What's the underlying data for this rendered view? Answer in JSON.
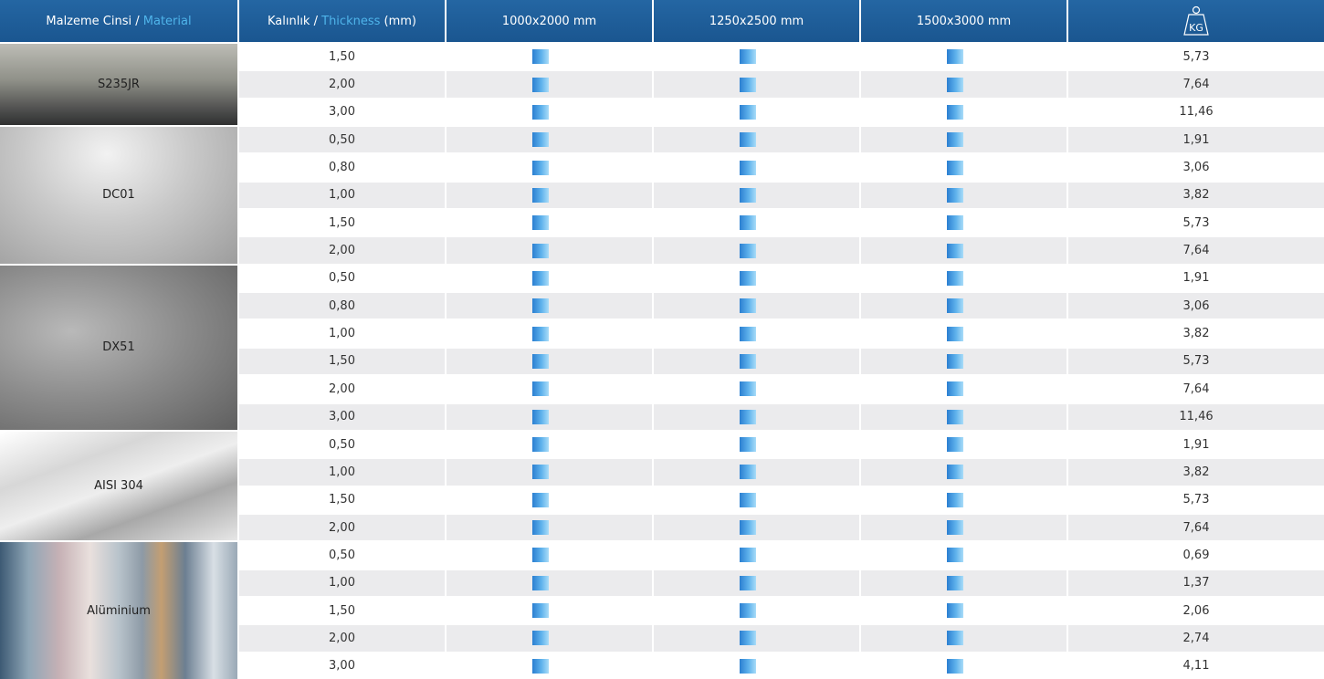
{
  "header": {
    "material": {
      "label": "Malzeme Cinsi /",
      "accent": "Material"
    },
    "thickness": {
      "label": "Kalınlık /",
      "accent": "Thickness",
      "unit": "(mm)"
    },
    "sizes": [
      "1000x2000 mm",
      "1250x2500 mm",
      "1500x3000 mm"
    ],
    "weight": "KG"
  },
  "materials": [
    {
      "name": "S235JR",
      "rows": [
        [
          "1,50",
          "5,73"
        ],
        [
          "2,00",
          "7,64"
        ],
        [
          "3,00",
          "11,46"
        ]
      ]
    },
    {
      "name": "DC01",
      "rows": [
        [
          "0,50",
          "1,91"
        ],
        [
          "0,80",
          "3,06"
        ],
        [
          "1,00",
          "3,82"
        ],
        [
          "1,50",
          "5,73"
        ],
        [
          "2,00",
          "7,64"
        ]
      ]
    },
    {
      "name": "DX51",
      "rows": [
        [
          "0,50",
          "1,91"
        ],
        [
          "0,80",
          "3,06"
        ],
        [
          "1,00",
          "3,82"
        ],
        [
          "1,50",
          "5,73"
        ],
        [
          "2,00",
          "7,64"
        ],
        [
          "3,00",
          "11,46"
        ]
      ]
    },
    {
      "name": "AISI 304",
      "rows": [
        [
          "0,50",
          "1,91"
        ],
        [
          "1,00",
          "3,82"
        ],
        [
          "1,50",
          "5,73"
        ],
        [
          "2,00",
          "7,64"
        ]
      ]
    },
    {
      "name": "Alüminium",
      "rows": [
        [
          "0,50",
          "0,69"
        ],
        [
          "1,00",
          "1,37"
        ],
        [
          "1,50",
          "2,06"
        ],
        [
          "2,00",
          "2,74"
        ],
        [
          "3,00",
          "4,11"
        ]
      ]
    }
  ]
}
